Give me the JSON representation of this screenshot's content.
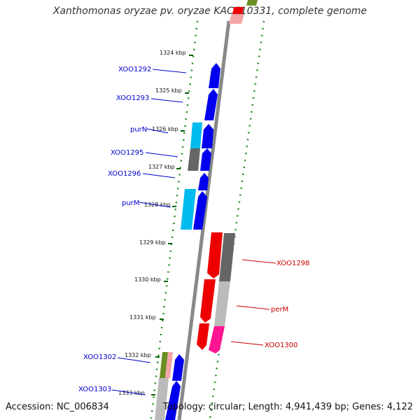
{
  "title": "Xanthomonas oryzae pv. oryzae KACC10331, complete genome",
  "footer": {
    "accession": "Accession: NC_006834",
    "topology": "Topology: circular; Length: 4,941,439 bp; Genes: 4,122"
  },
  "colors": {
    "forward_cds": "#0000ee",
    "forward_other": "#00bbee",
    "reverse_cds": "#ee0000",
    "reverse_other": "#ff1493",
    "grey_feature": "#666666",
    "light_grey_feature": "#bbbbbb",
    "backbone": "#888888",
    "dots": "#228b22"
  },
  "ticks": [
    "1324 kbp",
    "1325 kbp",
    "1326 kbp",
    "1327 kbp",
    "1328 kbp",
    "1329 kbp",
    "1330 kbp",
    "1331 kbp",
    "1332 kbp",
    "1333 kbp"
  ],
  "gene_labels_left": [
    "XOO1292",
    "XOO1293",
    "purN",
    "XOO1295",
    "XOO1296",
    "purM",
    "XOO1302",
    "XOO1303"
  ],
  "gene_labels_right": [
    "XOO1298",
    "perM",
    "XOO1300"
  ]
}
